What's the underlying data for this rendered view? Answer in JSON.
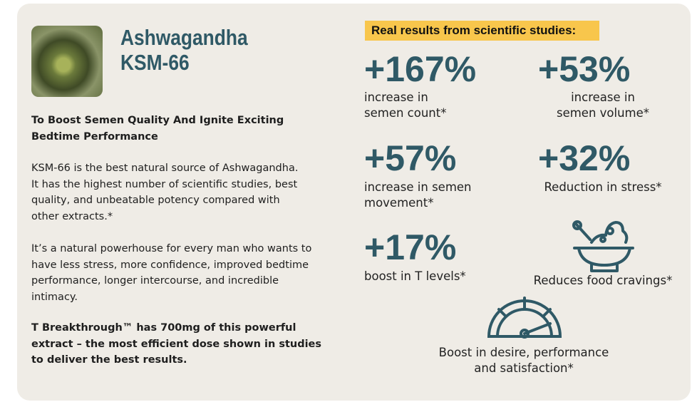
{
  "product": {
    "title_lines": [
      "Ashwagandha",
      "KSM-66"
    ],
    "subtitle_lines": [
      "To Boost Semen Quality And Ignite Exciting",
      "Bedtime Performance"
    ],
    "paragraph_1_lines": [
      "KSM-66 is the best natural source of Ashwagandha.",
      "It has the highest number of scientific studies, best",
      "quality, and unbeatable potency compared with",
      "other extracts.*"
    ],
    "paragraph_2_lines": [
      "It’s a natural powerhouse for every man who wants to",
      "have less stress, more confidence, improved bedtime",
      "performance, longer intercourse, and incredible",
      "intimacy."
    ],
    "paragraph_3_lines": [
      "T Breakthrough™ has 700mg of this powerful",
      "extract – the most efficient dose shown in studies",
      "to deliver the best results."
    ]
  },
  "results": {
    "heading": "Real results from scientific studies:",
    "stats": [
      {
        "value": "+167%",
        "label_lines": [
          "increase in",
          "semen count*"
        ]
      },
      {
        "value": "+53%",
        "label_lines": [
          "increase in",
          "semen volume*"
        ]
      },
      {
        "value": "+57%",
        "label_lines": [
          "increase in semen",
          "movement*"
        ]
      },
      {
        "value": "+32%",
        "label_lines": [
          "Reduction in stress*"
        ]
      },
      {
        "value": "+17%",
        "label_lines": [
          "boost in T levels*"
        ]
      }
    ],
    "icon_items": [
      {
        "label_lines": [
          "Reduces food cravings*"
        ]
      },
      {
        "label_lines": [
          "Boost in desire, performance",
          "and satisfaction*"
        ]
      }
    ]
  }
}
